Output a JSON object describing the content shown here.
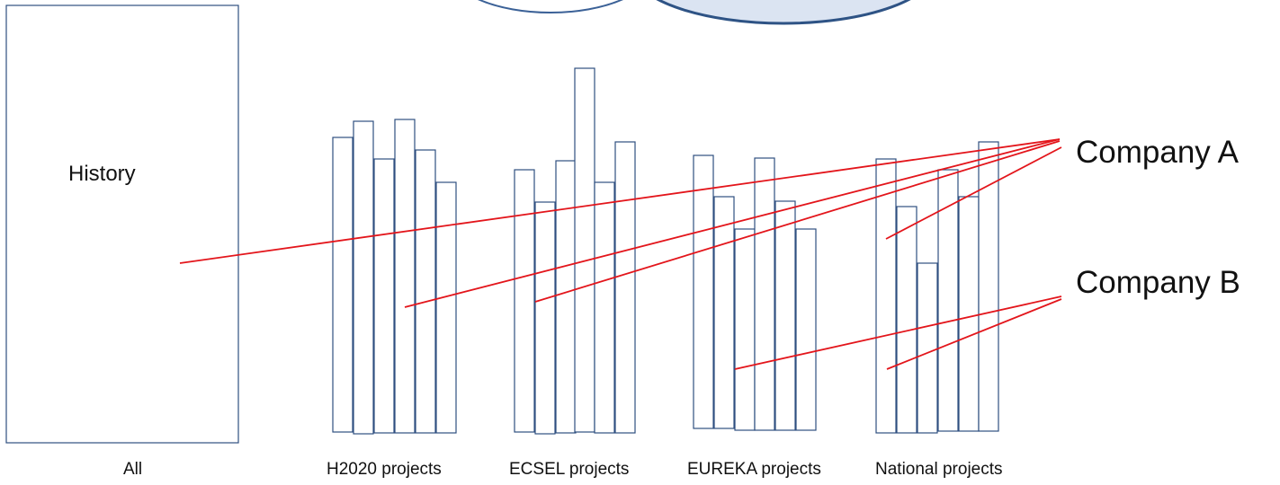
{
  "labels": {
    "history": "History",
    "all": "All",
    "company_a": "Company A",
    "company_b": "Company B"
  },
  "groups": [
    {
      "id": "h2020",
      "label": "H2020 projects"
    },
    {
      "id": "ecsel",
      "label": "ECSEL projects"
    },
    {
      "id": "eureka",
      "label": "EUREKA projects"
    },
    {
      "id": "national",
      "label": "National projects"
    }
  ],
  "colors": {
    "box_stroke": "#2f4f80",
    "link_line": "#e3151b",
    "top_ellipse_left": "#3b6197",
    "top_ellipse_right": "#dbe4f2"
  }
}
